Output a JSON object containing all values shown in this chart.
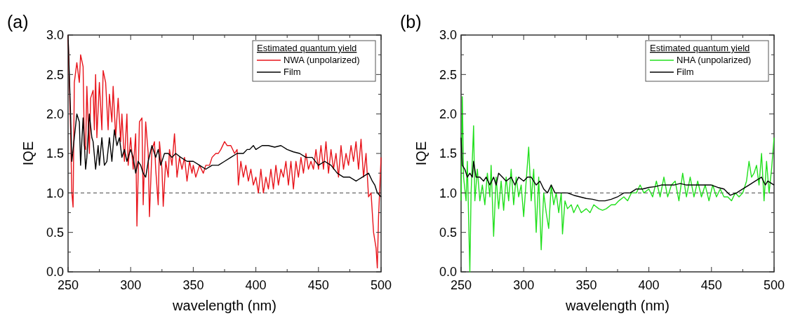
{
  "chart_data": [
    {
      "type": "line",
      "annotations": [
        "(a)"
      ],
      "xlabel": "wavelength (nm)",
      "ylabel": "IQE",
      "legend_title": "Estimated quantum yield",
      "legend": "top right",
      "line_style": "solid",
      "xlim": [
        250,
        500
      ],
      "ylim": [
        0,
        3
      ],
      "xticks": [
        250,
        {
          "value": 275,
          "label": null
        },
        300,
        {
          "value": 325,
          "label": null
        },
        350,
        {
          "value": 375,
          "label": null
        },
        400,
        {
          "value": 425,
          "label": null
        },
        450,
        {
          "value": 475,
          "label": null
        },
        500
      ],
      "yticks": [
        {
          "value": 0,
          "label": "0.0"
        },
        {
          "value": 0.25,
          "label": null
        },
        0.5,
        {
          "value": 0.75,
          "label": null
        },
        {
          "value": 1,
          "label": "1.0"
        },
        {
          "value": 1.25,
          "label": null
        },
        1.5,
        {
          "value": 1.75,
          "label": null
        },
        {
          "value": 2,
          "label": "2.0"
        },
        {
          "value": 2.25,
          "label": null
        },
        2.5,
        {
          "value": 2.75,
          "label": null
        },
        {
          "value": 3,
          "label": "3.0"
        }
      ],
      "ref_lines": [
        {
          "axis": "y",
          "value": 1,
          "color": "#444444",
          "line_style": "dashed"
        }
      ],
      "series": [
        {
          "name": "NWA (unpolarized)",
          "color": "#e8141b",
          "x": [
            250,
            252,
            253,
            254,
            255,
            257,
            259,
            260,
            262,
            263,
            264,
            265,
            267,
            268,
            270,
            271,
            272,
            273,
            275,
            277,
            278,
            280,
            282,
            283,
            285,
            286,
            288,
            290,
            292,
            293,
            295,
            297,
            298,
            300,
            302,
            304,
            305,
            307,
            309,
            310,
            312,
            314,
            315,
            317,
            319,
            320,
            322,
            323,
            325,
            326,
            328,
            330,
            331,
            333,
            335,
            337,
            339,
            341,
            343,
            345,
            347,
            349,
            350,
            352,
            355,
            358,
            360,
            363,
            365,
            368,
            370,
            372,
            375,
            377,
            380,
            383,
            385,
            386,
            388,
            390,
            392,
            394,
            396,
            398,
            400,
            402,
            404,
            406,
            408,
            410,
            412,
            414,
            416,
            418,
            420,
            422,
            424,
            426,
            428,
            430,
            432,
            434,
            436,
            438,
            440,
            442,
            444,
            446,
            448,
            450,
            452,
            454,
            456,
            458,
            460,
            462,
            464,
            466,
            468,
            470,
            472,
            474,
            476,
            478,
            480,
            482,
            484,
            486,
            488,
            490,
            492,
            494,
            496,
            497,
            498,
            500
          ],
          "values": [
            3.0,
            1.8,
            1.0,
            0.82,
            2.4,
            2.65,
            2.4,
            2.75,
            2.6,
            1.6,
            1.55,
            2.35,
            1.5,
            2.2,
            2.3,
            1.8,
            2.5,
            1.7,
            2.4,
            1.8,
            2.55,
            2.4,
            1.8,
            2.25,
            1.9,
            2.35,
            1.7,
            2.2,
            1.65,
            2.0,
            1.4,
            2.0,
            1.35,
            1.7,
            1.3,
            1.75,
            0.58,
            1.9,
            1.95,
            0.85,
            1.9,
            1.5,
            0.7,
            1.55,
            1.65,
            1.3,
            0.85,
            1.65,
            1.3,
            0.83,
            1.4,
            1.2,
            1.55,
            1.35,
            1.75,
            1.2,
            1.45,
            1.3,
            1.45,
            1.15,
            1.4,
            1.25,
            1.35,
            1.2,
            1.35,
            1.25,
            1.35,
            1.35,
            1.45,
            1.5,
            1.5,
            1.55,
            1.65,
            1.6,
            1.6,
            1.5,
            1.55,
            1.1,
            1.4,
            1.2,
            1.35,
            1.15,
            1.3,
            1.1,
            1.2,
            1.0,
            1.3,
            1.0,
            1.2,
            1.05,
            1.3,
            1.05,
            1.35,
            1.1,
            1.3,
            1.2,
            1.4,
            1.1,
            1.4,
            1.05,
            1.4,
            1.2,
            1.45,
            1.25,
            1.5,
            1.3,
            1.4,
            1.3,
            1.55,
            1.3,
            1.6,
            1.3,
            1.65,
            1.25,
            1.55,
            1.3,
            1.5,
            1.2,
            1.6,
            1.3,
            1.5,
            1.35,
            1.6,
            1.4,
            1.65,
            1.3,
            1.68,
            1.2,
            1.5,
            0.95,
            1.0,
            0.5,
            0.3,
            0.05,
            0.7,
            1.45
          ]
        },
        {
          "name": "Film",
          "color": "#000000",
          "x": [
            250,
            252,
            253,
            255,
            257,
            259,
            260,
            262,
            264,
            265,
            267,
            269,
            270,
            272,
            274,
            275,
            277,
            279,
            281,
            283,
            285,
            287,
            289,
            291,
            293,
            295,
            297,
            300,
            302,
            304,
            306,
            308,
            310,
            312,
            314,
            317,
            320,
            322,
            324,
            327,
            330,
            333,
            336,
            340,
            345,
            350,
            355,
            360,
            365,
            370,
            375,
            380,
            385,
            388,
            390,
            393,
            395,
            398,
            400,
            405,
            410,
            415,
            420,
            425,
            430,
            435,
            440,
            445,
            450,
            455,
            460,
            465,
            470,
            475,
            480,
            485,
            490,
            493,
            495,
            497,
            500
          ],
          "values": [
            3.0,
            2.0,
            1.4,
            1.7,
            2.0,
            1.9,
            1.35,
            1.95,
            1.3,
            1.45,
            2.0,
            1.7,
            1.65,
            1.3,
            1.6,
            1.35,
            1.7,
            1.35,
            1.4,
            1.7,
            1.4,
            1.8,
            1.6,
            1.7,
            1.45,
            1.55,
            1.4,
            1.55,
            1.45,
            1.25,
            1.4,
            1.35,
            1.25,
            1.2,
            1.4,
            1.6,
            1.45,
            1.55,
            1.35,
            1.5,
            1.5,
            1.45,
            1.5,
            1.45,
            1.4,
            1.4,
            1.35,
            1.3,
            1.35,
            1.35,
            1.4,
            1.45,
            1.5,
            1.5,
            1.5,
            1.55,
            1.55,
            1.6,
            1.55,
            1.6,
            1.6,
            1.58,
            1.6,
            1.55,
            1.52,
            1.5,
            1.45,
            1.45,
            1.35,
            1.4,
            1.35,
            1.25,
            1.2,
            1.2,
            1.15,
            1.2,
            1.25,
            1.15,
            1.1,
            1.0,
            0.95
          ]
        }
      ]
    },
    {
      "type": "line",
      "annotations": [
        "(b)"
      ],
      "xlabel": "wavelength (nm)",
      "ylabel": "IQE",
      "legend_title": "Estimated quantum yield",
      "legend": "top right",
      "line_style": "solid",
      "xlim": [
        250,
        500
      ],
      "ylim": [
        0,
        3
      ],
      "xticks": [
        250,
        {
          "value": 275,
          "label": null
        },
        300,
        {
          "value": 325,
          "label": null
        },
        350,
        {
          "value": 375,
          "label": null
        },
        400,
        {
          "value": 425,
          "label": null
        },
        450,
        {
          "value": 475,
          "label": null
        },
        500
      ],
      "yticks": [
        {
          "value": 0,
          "label": "0.0"
        },
        {
          "value": 0.25,
          "label": null
        },
        0.5,
        {
          "value": 0.75,
          "label": null
        },
        {
          "value": 1,
          "label": "1.0"
        },
        {
          "value": 1.25,
          "label": null
        },
        1.5,
        {
          "value": 1.75,
          "label": null
        },
        {
          "value": 2,
          "label": "2.0"
        },
        {
          "value": 2.25,
          "label": null
        },
        2.5,
        {
          "value": 2.75,
          "label": null
        },
        {
          "value": 3,
          "label": "3.0"
        }
      ],
      "ref_lines": [
        {
          "axis": "y",
          "value": 1,
          "color": "#444444",
          "line_style": "dashed"
        }
      ],
      "series": [
        {
          "name": "NHA (unpolarized)",
          "color": "#22e01e",
          "x": [
            250,
            251,
            252,
            254,
            255,
            257,
            258,
            260,
            261,
            263,
            265,
            267,
            269,
            271,
            273,
            274,
            276,
            278,
            280,
            282,
            284,
            286,
            288,
            290,
            292,
            294,
            296,
            298,
            300,
            302,
            304,
            306,
            308,
            310,
            312,
            314,
            316,
            318,
            320,
            322,
            324,
            326,
            328,
            330,
            331,
            333,
            335,
            338,
            340,
            343,
            346,
            350,
            353,
            356,
            360,
            363,
            366,
            370,
            373,
            376,
            380,
            383,
            386,
            390,
            393,
            396,
            400,
            403,
            406,
            409,
            412,
            415,
            418,
            421,
            424,
            427,
            430,
            433,
            436,
            439,
            442,
            445,
            448,
            451,
            454,
            457,
            460,
            463,
            466,
            469,
            472,
            475,
            478,
            480,
            482,
            484,
            486,
            488,
            490,
            492,
            494,
            496,
            498,
            500
          ],
          "values": [
            0.9,
            2.22,
            1.2,
            0.9,
            1.4,
            0.0,
            1.0,
            1.85,
            0.9,
            1.3,
            0.9,
            1.1,
            0.85,
            1.25,
            0.95,
            1.35,
            0.45,
            1.2,
            0.8,
            1.15,
            0.78,
            1.2,
            0.9,
            1.3,
            0.85,
            1.2,
            0.95,
            1.1,
            0.7,
            1.15,
            1.58,
            0.9,
            1.3,
            0.5,
            1.2,
            0.28,
            1.0,
            0.75,
            0.55,
            1.1,
            0.85,
            1.0,
            0.75,
            1.0,
            0.48,
            0.9,
            0.8,
            0.85,
            0.75,
            0.85,
            0.75,
            0.8,
            0.75,
            0.85,
            0.8,
            0.78,
            0.8,
            0.85,
            0.85,
            0.9,
            0.95,
            0.9,
            1.0,
            1.0,
            1.1,
            1.0,
            1.05,
            0.95,
            1.15,
            0.95,
            1.2,
            0.95,
            1.1,
            1.15,
            0.9,
            1.25,
            0.95,
            1.2,
            0.95,
            1.15,
            0.95,
            1.1,
            0.9,
            1.1,
            0.95,
            1.05,
            0.95,
            0.95,
            0.9,
            1.0,
            0.95,
            1.0,
            1.15,
            1.4,
            1.2,
            1.25,
            1.35,
            1.1,
            1.5,
            0.9,
            1.4,
            1.0,
            1.3,
            1.7
          ]
        },
        {
          "name": "Film",
          "color": "#000000",
          "x": [
            250,
            251,
            253,
            255,
            257,
            259,
            260,
            262,
            265,
            268,
            270,
            273,
            276,
            278,
            280,
            283,
            286,
            290,
            293,
            296,
            300,
            303,
            306,
            310,
            313,
            316,
            319,
            322,
            325,
            330,
            335,
            340,
            345,
            350,
            355,
            360,
            365,
            370,
            375,
            380,
            385,
            390,
            395,
            400,
            405,
            410,
            415,
            420,
            425,
            430,
            435,
            440,
            445,
            450,
            455,
            460,
            465,
            470,
            475,
            480,
            485,
            490,
            493,
            495,
            500
          ],
          "values": [
            1.7,
            1.35,
            1.3,
            1.2,
            1.25,
            1.2,
            1.4,
            1.2,
            1.2,
            1.15,
            1.2,
            1.1,
            1.2,
            1.1,
            1.25,
            1.2,
            1.15,
            1.2,
            1.1,
            1.2,
            1.15,
            1.2,
            1.2,
            1.1,
            1.15,
            1.05,
            1.0,
            1.1,
            1.0,
            1.0,
            1.0,
            0.97,
            0.95,
            0.93,
            0.92,
            0.9,
            0.9,
            0.92,
            0.95,
            1.0,
            1.0,
            1.05,
            1.05,
            1.07,
            1.08,
            1.1,
            1.1,
            1.1,
            1.12,
            1.1,
            1.1,
            1.1,
            1.1,
            1.1,
            1.07,
            1.05,
            0.97,
            1.0,
            1.05,
            1.1,
            1.15,
            1.2,
            1.1,
            1.15,
            1.1
          ]
        }
      ]
    }
  ]
}
